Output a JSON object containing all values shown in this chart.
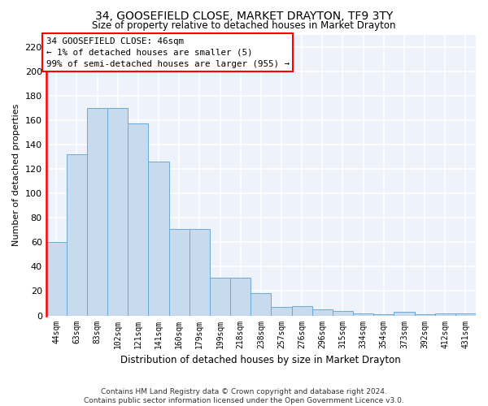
{
  "title": "34, GOOSEFIELD CLOSE, MARKET DRAYTON, TF9 3TY",
  "subtitle": "Size of property relative to detached houses in Market Drayton",
  "xlabel": "Distribution of detached houses by size in Market Drayton",
  "ylabel": "Number of detached properties",
  "bar_color": "#c8daee",
  "bar_edge_color": "#6aaad4",
  "background_color": "#eef2fa",
  "grid_color": "#ffffff",
  "categories": [
    "44sqm",
    "63sqm",
    "83sqm",
    "102sqm",
    "121sqm",
    "141sqm",
    "160sqm",
    "179sqm",
    "199sqm",
    "218sqm",
    "238sqm",
    "257sqm",
    "276sqm",
    "296sqm",
    "315sqm",
    "334sqm",
    "354sqm",
    "373sqm",
    "392sqm",
    "412sqm",
    "431sqm"
  ],
  "values": [
    60,
    132,
    170,
    170,
    157,
    126,
    71,
    71,
    31,
    31,
    18,
    7,
    8,
    5,
    4,
    2,
    1,
    3,
    1,
    2,
    2
  ],
  "ylim": [
    0,
    230
  ],
  "yticks": [
    0,
    20,
    40,
    60,
    80,
    100,
    120,
    140,
    160,
    180,
    200,
    220
  ],
  "annotation_line1": "34 GOOSEFIELD CLOSE: 46sqm",
  "annotation_line2": "← 1% of detached houses are smaller (5)",
  "annotation_line3": "99% of semi-detached houses are larger (955) →",
  "footer_line1": "Contains HM Land Registry data © Crown copyright and database right 2024.",
  "footer_line2": "Contains public sector information licensed under the Open Government Licence v3.0."
}
